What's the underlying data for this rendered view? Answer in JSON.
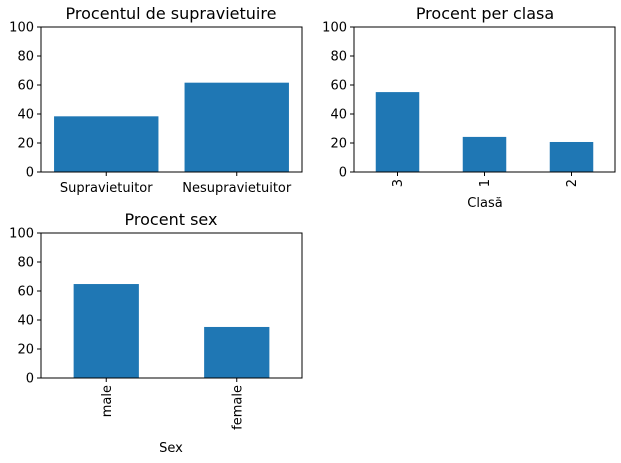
{
  "chart_data": [
    {
      "type": "bar",
      "title": "Procentul de supravietuire",
      "xlabel": "",
      "ylabel": "",
      "categories": [
        "Supravietuitor",
        "Nesupravietuitor"
      ],
      "values": [
        38.4,
        61.6
      ],
      "ylim": [
        0,
        100
      ],
      "yticks": [
        0,
        20,
        40,
        60,
        80,
        100
      ],
      "xtick_rotation": 0,
      "grid": false,
      "color": "#1f77b4"
    },
    {
      "type": "bar",
      "title": "Procent per clasa",
      "xlabel": "Clasă",
      "ylabel": "",
      "categories": [
        "3",
        "1",
        "2"
      ],
      "values": [
        55.1,
        24.2,
        20.7
      ],
      "ylim": [
        0,
        100
      ],
      "yticks": [
        0,
        20,
        40,
        60,
        80,
        100
      ],
      "xtick_rotation": 90,
      "grid": false,
      "color": "#1f77b4"
    },
    {
      "type": "bar",
      "title": "Procent sex",
      "xlabel": "Sex",
      "ylabel": "",
      "categories": [
        "male",
        "female"
      ],
      "values": [
        64.8,
        35.2
      ],
      "ylim": [
        0,
        100
      ],
      "yticks": [
        0,
        20,
        40,
        60,
        80,
        100
      ],
      "xtick_rotation": 90,
      "grid": false,
      "color": "#1f77b4"
    }
  ]
}
